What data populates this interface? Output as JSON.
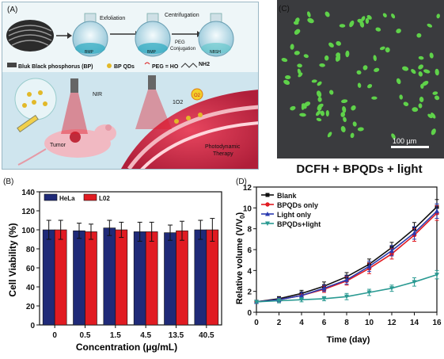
{
  "panelA": {
    "label": "(A)",
    "step1": "Exfoliation",
    "step2": "Centrifugation",
    "step3": "PEG\nConjugation",
    "flask1": "BMP",
    "flask2": "BMP",
    "flask3": "NBSH",
    "legend_bp": "Bluk Black phosphorus (BP)",
    "legend_qd": "BP QDs",
    "legend_peg": "PEG = HO",
    "legend_peg2": "NH2",
    "nir": "NIR",
    "tumor": "Tumor",
    "singlet": "1O2",
    "o2": "O2",
    "pdt": "Photodynamic\nTherapy"
  },
  "panelC": {
    "label": "(C)",
    "scalebar": "100 µm",
    "caption": "DCFH + BPQDs + light"
  },
  "panelB": {
    "label": "(B)",
    "ylabel": "Cell Viability (%)",
    "xlabel": "Concentration (µg/mL)"
  },
  "panelD": {
    "label": "(D)",
    "ylabel": "Relative volume (V/V0)",
    "xlabel": "Time (day)"
  },
  "chart_data": [
    {
      "type": "bar",
      "categories": [
        "0",
        "0.5",
        "1.5",
        "4.5",
        "13.5",
        "40.5"
      ],
      "series": [
        {
          "name": "HeLa",
          "color": "#1f2a78",
          "values": [
            100,
            99,
            102,
            98,
            97,
            100
          ],
          "errors": [
            10,
            8,
            8,
            10,
            8,
            10
          ]
        },
        {
          "name": "L02",
          "color": "#e11b22",
          "values": [
            100,
            98,
            100,
            98,
            99,
            100
          ],
          "errors": [
            10,
            8,
            8,
            10,
            10,
            12
          ]
        }
      ],
      "ylim": [
        0,
        140
      ],
      "yticks": [
        0,
        20,
        40,
        60,
        80,
        100,
        120,
        140
      ],
      "xlabel": "Concentration (µg/mL)",
      "ylabel": "Cell Viability (%)",
      "legend": "top-left"
    },
    {
      "type": "line",
      "x": [
        0,
        2,
        4,
        6,
        8,
        10,
        12,
        14,
        16
      ],
      "series": [
        {
          "name": "Blank",
          "color": "#111111",
          "marker": "square",
          "values": [
            1.0,
            1.3,
            1.8,
            2.5,
            3.4,
            4.6,
            6.2,
            8.0,
            10.1
          ],
          "errors": [
            0.1,
            0.2,
            0.3,
            0.4,
            0.4,
            0.5,
            0.5,
            0.6,
            0.7
          ]
        },
        {
          "name": "BPQDs only",
          "color": "#e11b22",
          "marker": "circle",
          "values": [
            1.0,
            1.2,
            1.6,
            2.2,
            3.0,
            4.2,
            5.6,
            7.4,
            9.5
          ],
          "errors": [
            0.1,
            0.2,
            0.3,
            0.3,
            0.4,
            0.5,
            0.5,
            0.6,
            0.7
          ]
        },
        {
          "name": "Light only",
          "color": "#2a3bb0",
          "marker": "triangle",
          "values": [
            1.0,
            1.2,
            1.6,
            2.3,
            3.1,
            4.4,
            5.9,
            7.6,
            9.7
          ],
          "errors": [
            0.1,
            0.2,
            0.3,
            0.3,
            0.4,
            0.5,
            0.5,
            0.6,
            0.7
          ]
        },
        {
          "name": "BPQDs+light",
          "color": "#2a9a92",
          "marker": "triangle-down",
          "values": [
            1.0,
            1.1,
            1.2,
            1.3,
            1.5,
            1.9,
            2.3,
            2.9,
            3.6
          ],
          "errors": [
            0.1,
            0.2,
            0.2,
            0.2,
            0.3,
            0.3,
            0.3,
            0.4,
            0.4
          ]
        }
      ],
      "xlim": [
        0,
        16
      ],
      "ylim": [
        0,
        12
      ],
      "xticks": [
        0,
        2,
        4,
        6,
        8,
        10,
        12,
        14,
        16
      ],
      "yticks": [
        0,
        2,
        4,
        6,
        8,
        10,
        12
      ],
      "xlabel": "Time (day)",
      "ylabel": "Relative volume (V/V0)",
      "legend": "top-left"
    }
  ]
}
